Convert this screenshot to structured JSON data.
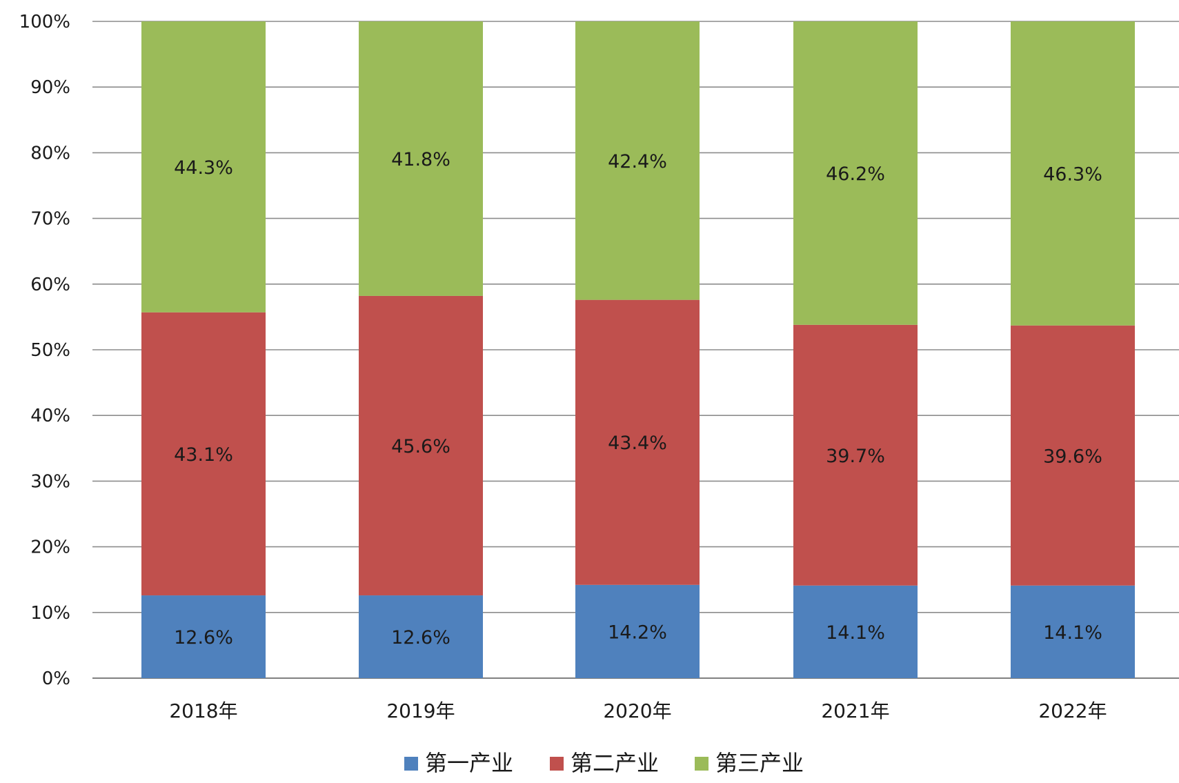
{
  "chart_data": {
    "type": "bar",
    "stacked": true,
    "percent_stacked": true,
    "categories": [
      "2018年",
      "2019年",
      "2020年",
      "2021年",
      "2022年"
    ],
    "series": [
      {
        "name": "第一产业",
        "values": [
          12.6,
          12.6,
          14.2,
          14.1,
          14.1
        ],
        "labels": [
          "12.6%",
          "12.6%",
          "14.2%",
          "14.1%",
          "14.1%"
        ],
        "color": "#4f81bd"
      },
      {
        "name": "第二产业",
        "values": [
          43.1,
          45.6,
          43.4,
          39.7,
          39.6
        ],
        "labels": [
          "43.1%",
          "45.6%",
          "43.4%",
          "39.7%",
          "39.6%"
        ],
        "color": "#c0504d"
      },
      {
        "name": "第三产业",
        "values": [
          44.3,
          41.8,
          42.4,
          46.2,
          46.3
        ],
        "labels": [
          "44.3%",
          "41.8%",
          "42.4%",
          "46.2%",
          "46.3%"
        ],
        "color": "#9bbb59"
      }
    ],
    "yticks": [
      "0%",
      "10%",
      "20%",
      "30%",
      "40%",
      "50%",
      "60%",
      "70%",
      "80%",
      "90%",
      "100%"
    ],
    "ylim": [
      0,
      100
    ],
    "grid": true,
    "legend": "bottom"
  }
}
